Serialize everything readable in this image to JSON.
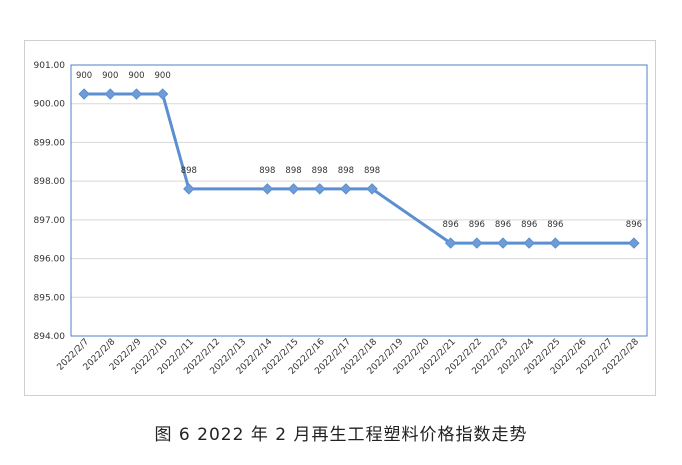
{
  "caption": "图 6  2022 年 2 月再生工程塑料价格指数走势",
  "colors": {
    "line": "#5b8fd0",
    "marker": "#6e9cd6",
    "grid": "#d8d8d8",
    "plot_border": "#4f7fc0",
    "axis": "#bfbfbf"
  },
  "chart_data": {
    "type": "line",
    "title": "",
    "xlabel": "",
    "ylabel": "",
    "ylim": [
      894,
      901
    ],
    "yticks": [
      "894.00",
      "895.00",
      "896.00",
      "897.00",
      "898.00",
      "899.00",
      "900.00",
      "901.00"
    ],
    "grid": true,
    "legend": "none",
    "categories": [
      "2022/2/7",
      "2022/2/8",
      "2022/2/9",
      "2022/2/10",
      "2022/2/11",
      "2022/2/12",
      "2022/2/13",
      "2022/2/14",
      "2022/2/15",
      "2022/2/16",
      "2022/2/17",
      "2022/2/18",
      "2022/2/19",
      "2022/2/20",
      "2022/2/21",
      "2022/2/22",
      "2022/2/23",
      "2022/2/24",
      "2022/2/25",
      "2022/2/26",
      "2022/2/27",
      "2022/2/28"
    ],
    "series": [
      {
        "points": [
          {
            "x": "2022/2/7",
            "y": 900.25,
            "label": "900"
          },
          {
            "x": "2022/2/8",
            "y": 900.25,
            "label": "900"
          },
          {
            "x": "2022/2/9",
            "y": 900.25,
            "label": "900"
          },
          {
            "x": "2022/2/10",
            "y": 900.25,
            "label": "900"
          },
          {
            "x": "2022/2/11",
            "y": 897.8,
            "label": "898"
          },
          {
            "x": "2022/2/14",
            "y": 897.8,
            "label": "898"
          },
          {
            "x": "2022/2/15",
            "y": 897.8,
            "label": "898"
          },
          {
            "x": "2022/2/16",
            "y": 897.8,
            "label": "898"
          },
          {
            "x": "2022/2/17",
            "y": 897.8,
            "label": "898"
          },
          {
            "x": "2022/2/18",
            "y": 897.8,
            "label": "898"
          },
          {
            "x": "2022/2/21",
            "y": 896.4,
            "label": "896"
          },
          {
            "x": "2022/2/22",
            "y": 896.4,
            "label": "896"
          },
          {
            "x": "2022/2/23",
            "y": 896.4,
            "label": "896"
          },
          {
            "x": "2022/2/24",
            "y": 896.4,
            "label": "896"
          },
          {
            "x": "2022/2/25",
            "y": 896.4,
            "label": "896"
          },
          {
            "x": "2022/2/28",
            "y": 896.4,
            "label": "896"
          }
        ]
      }
    ]
  }
}
